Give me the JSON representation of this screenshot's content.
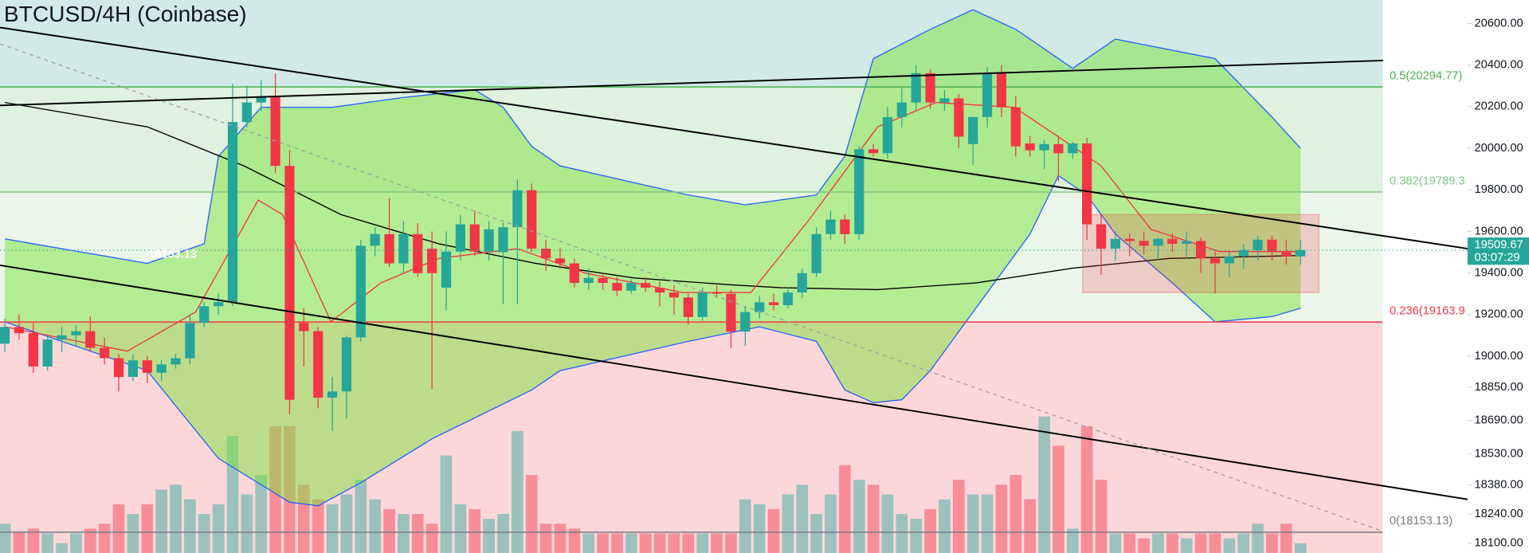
{
  "chart_data": {
    "type": "candlestick",
    "title": "BTCUSD/4H (Coinbase)",
    "xlim": [
      -0.34,
      107.05
    ],
    "ylim": [
      18053,
      20713
    ],
    "yticks": [
      {
        "value": 20600,
        "label": "20600.00"
      },
      {
        "value": 20400,
        "label": "20400.00"
      },
      {
        "value": 20200,
        "label": "20200.00"
      },
      {
        "value": 20000,
        "label": "20000.00"
      },
      {
        "value": 19800,
        "label": "19800.00"
      },
      {
        "value": 19600,
        "label": "19600.00"
      },
      {
        "value": 19400,
        "label": "19400.00"
      },
      {
        "value": 19200,
        "label": "19200.00"
      },
      {
        "value": 19000,
        "label": "19000.00"
      },
      {
        "value": 18850,
        "label": "18850.00"
      },
      {
        "value": 18690,
        "label": "18690.00"
      },
      {
        "value": 18530,
        "label": "18530.00"
      },
      {
        "value": 18380,
        "label": "18380.00"
      },
      {
        "value": 18240,
        "label": "18240.00"
      },
      {
        "value": 18100,
        "label": "18100.00"
      }
    ],
    "up_color": "#26a69a",
    "down_color": "#f23645",
    "candles": [
      [
        19060,
        19180,
        19020,
        19140
      ],
      [
        19140,
        19200,
        19080,
        19110
      ],
      [
        19110,
        19160,
        18920,
        18950
      ],
      [
        18950,
        19100,
        18930,
        19080
      ],
      [
        19080,
        19140,
        19020,
        19100
      ],
      [
        19100,
        19150,
        19050,
        19120
      ],
      [
        19120,
        19190,
        19020,
        19040
      ],
      [
        19040,
        19090,
        18960,
        18990
      ],
      [
        18990,
        19010,
        18830,
        18900
      ],
      [
        18900,
        19010,
        18880,
        18980
      ],
      [
        18980,
        19000,
        18870,
        18920
      ],
      [
        18920,
        18980,
        18880,
        18960
      ],
      [
        18960,
        19010,
        18940,
        18990
      ],
      [
        18990,
        19200,
        18960,
        19160
      ],
      [
        19160,
        19260,
        19140,
        19240
      ],
      [
        19240,
        19300,
        19200,
        19260
      ],
      [
        19260,
        20310,
        19240,
        20126
      ],
      [
        20126,
        20300,
        20100,
        20220
      ],
      [
        20220,
        20330,
        20180,
        20250
      ],
      [
        20250,
        20360,
        19880,
        19915
      ],
      [
        19915,
        19990,
        18720,
        18790
      ],
      [
        19160,
        19230,
        18950,
        19120
      ],
      [
        19120,
        19140,
        18750,
        18800
      ],
      [
        18800,
        18900,
        18640,
        18830
      ],
      [
        18830,
        19100,
        18700,
        19090
      ],
      [
        19090,
        19560,
        19070,
        19531
      ],
      [
        19531,
        19620,
        19480,
        19587
      ],
      [
        19587,
        19760,
        19430,
        19446
      ],
      [
        19446,
        19650,
        19400,
        19587
      ],
      [
        19587,
        19640,
        19380,
        19399
      ],
      [
        19517,
        19600,
        18840,
        19399
      ],
      [
        19329,
        19600,
        19220,
        19503
      ],
      [
        19503,
        19680,
        19460,
        19634
      ],
      [
        19634,
        19700,
        19480,
        19503
      ],
      [
        19503,
        19650,
        19460,
        19610
      ],
      [
        19500,
        19640,
        19250,
        19620
      ],
      [
        19620,
        19850,
        19250,
        19798
      ],
      [
        19798,
        19830,
        19500,
        19517
      ],
      [
        19517,
        19560,
        19410,
        19470
      ],
      [
        19470,
        19520,
        19420,
        19446
      ],
      [
        19446,
        19470,
        19330,
        19352
      ],
      [
        19352,
        19420,
        19320,
        19376
      ],
      [
        19376,
        19400,
        19320,
        19352
      ],
      [
        19352,
        19380,
        19290,
        19315
      ],
      [
        19315,
        19370,
        19300,
        19352
      ],
      [
        19352,
        19380,
        19310,
        19329
      ],
      [
        19329,
        19360,
        19240,
        19306
      ],
      [
        19306,
        19340,
        19200,
        19282
      ],
      [
        19282,
        19300,
        19150,
        19188
      ],
      [
        19188,
        19330,
        19170,
        19306
      ],
      [
        19306,
        19340,
        19280,
        19300
      ],
      [
        19300,
        19320,
        19040,
        19118
      ],
      [
        19118,
        19240,
        19050,
        19212
      ],
      [
        19212,
        19290,
        19180,
        19259
      ],
      [
        19259,
        19300,
        19220,
        19245
      ],
      [
        19245,
        19330,
        19230,
        19306
      ],
      [
        19306,
        19420,
        19280,
        19399
      ],
      [
        19399,
        19620,
        19380,
        19587
      ],
      [
        19587,
        19700,
        19560,
        19657
      ],
      [
        19657,
        19680,
        19540,
        19587
      ],
      [
        19587,
        20010,
        19560,
        19995
      ],
      [
        19995,
        20020,
        19960,
        19976
      ],
      [
        19976,
        20200,
        19950,
        20150
      ],
      [
        20150,
        20290,
        20100,
        20220
      ],
      [
        20220,
        20400,
        20180,
        20361
      ],
      [
        20361,
        20380,
        20190,
        20220
      ],
      [
        20220,
        20280,
        20180,
        20240
      ],
      [
        20240,
        20260,
        20000,
        20056
      ],
      [
        20020,
        20150,
        19920,
        20150
      ],
      [
        20150,
        20390,
        20100,
        20361
      ],
      [
        20361,
        20400,
        20150,
        20197
      ],
      [
        20197,
        20250,
        19960,
        20009
      ],
      [
        20023,
        20060,
        19960,
        19990
      ],
      [
        19990,
        20040,
        19900,
        20020
      ],
      [
        20020,
        20060,
        19840,
        19976
      ],
      [
        19976,
        20030,
        19950,
        20023
      ],
      [
        20023,
        20050,
        19560,
        19634
      ],
      [
        19634,
        19680,
        19390,
        19517
      ],
      [
        19517,
        19600,
        19460,
        19564
      ],
      [
        19564,
        19590,
        19480,
        19554
      ],
      [
        19554,
        19600,
        19490,
        19531
      ],
      [
        19531,
        19570,
        19460,
        19564
      ],
      [
        19564,
        19590,
        19500,
        19540
      ],
      [
        19540,
        19600,
        19470,
        19554
      ],
      [
        19554,
        19570,
        19400,
        19470
      ],
      [
        19470,
        19510,
        19300,
        19446
      ],
      [
        19446,
        19500,
        19380,
        19480
      ],
      [
        19480,
        19540,
        19420,
        19510
      ],
      [
        19510,
        19580,
        19460,
        19560
      ],
      [
        19560,
        19580,
        19460,
        19500
      ],
      [
        19500,
        19560,
        19440,
        19480
      ],
      [
        19480,
        19560,
        19440,
        19509.67
      ]
    ],
    "volume": {
      "up_color": "rgba(38,166,154,0.45)",
      "down_color": "rgba(242,54,69,0.45)",
      "values": [
        30,
        22,
        25,
        20,
        10,
        20,
        25,
        30,
        50,
        40,
        50,
        65,
        70,
        55,
        40,
        50,
        120,
        60,
        80,
        130,
        130,
        70,
        55,
        50,
        60,
        75,
        55,
        45,
        40,
        40,
        30,
        100,
        50,
        45,
        35,
        40,
        125,
        80,
        30,
        30,
        25,
        20,
        20,
        20,
        20,
        20,
        20,
        20,
        20,
        20,
        20,
        20,
        55,
        50,
        45,
        60,
        70,
        40,
        60,
        90,
        75,
        70,
        60,
        40,
        35,
        45,
        55,
        75,
        60,
        60,
        70,
        80,
        55,
        140,
        110,
        25,
        130,
        75,
        20,
        20,
        15,
        20,
        20,
        15,
        20,
        20,
        15,
        20,
        30,
        20,
        30,
        10
      ]
    },
    "band_fill": "rgba(125,225,60,0.5)",
    "lines": [
      {
        "x": [
          0,
          10,
          14,
          15,
          18,
          23,
          28,
          33,
          35,
          37,
          39,
          48,
          52,
          57,
          59,
          61,
          65,
          68,
          71,
          75,
          78,
          85,
          89,
          91
        ],
        "values": [
          19564,
          19446,
          19540,
          19960,
          20197,
          20197,
          20244,
          20281,
          20197,
          20009,
          19915,
          19775,
          19728,
          19775,
          19962,
          20431,
          20572,
          20666,
          20572,
          20384,
          20525,
          20431,
          20150,
          20000
        ],
        "color": "#2962ff"
      },
      {
        "x": [
          0,
          10,
          15,
          20,
          22,
          25,
          30,
          37,
          39,
          48,
          53,
          57,
          59,
          61,
          63,
          65,
          68,
          72,
          74,
          76,
          78,
          82,
          85,
          89,
          91
        ],
        "values": [
          19165,
          18930,
          18508,
          18297,
          18280,
          18391,
          18602,
          18837,
          18930,
          19071,
          19141,
          19071,
          18837,
          18776,
          18790,
          18930,
          19212,
          19587,
          19868,
          19775,
          19587,
          19352,
          19165,
          19190,
          19230
        ],
        "color": "#2962ff"
      },
      {
        "x": [
          0,
          10,
          16.8,
          23.6,
          30.5,
          37.3,
          44.2,
          51,
          54.5,
          61.3,
          68.2,
          75,
          81.8,
          91
        ],
        "values": [
          20220,
          20103,
          19915,
          19681,
          19540,
          19446,
          19376,
          19343,
          19329,
          19320,
          19352,
          19423,
          19470,
          19484
        ],
        "color": "#000000"
      },
      {
        "x": [
          0,
          8.6,
          13.4,
          17.8,
          19.5,
          22.9,
          26.4,
          30.5,
          36,
          40.8,
          47.6,
          52.4,
          56.5,
          61.3,
          65.4,
          70.9,
          75,
          77,
          80.5,
          85.3,
          91
        ],
        "values": [
          19141,
          19024,
          19212,
          19751,
          19681,
          19165,
          19352,
          19470,
          19517,
          19399,
          19306,
          19306,
          19657,
          20103,
          20220,
          20197,
          20009,
          19915,
          19610,
          19503,
          19503
        ],
        "color": "#f23645"
      }
    ],
    "trendlines": [
      {
        "x": [
          -0.34,
          102.74
        ],
        "values": [
          20581,
          19517
        ],
        "color": "#000000",
        "dashed": false
      },
      {
        "x": [
          -0.34,
          96.8
        ],
        "values": [
          20206,
          20422
        ],
        "color": "#000000",
        "dashed": false
      },
      {
        "x": [
          -0.34,
          102.74
        ],
        "values": [
          19437,
          18311
        ],
        "color": "#000000",
        "dashed": false
      },
      {
        "x": [
          -0.34,
          96.8
        ],
        "values": [
          20502,
          18157
        ],
        "color": "#9e9e9e",
        "dashed": true
      }
    ],
    "fib": [
      {
        "value": 20294.77,
        "label": "0.5(20294.77)",
        "color": "#4caf50"
      },
      {
        "value": 19789.3,
        "label": "0.382(19789.3",
        "color": "#81c784"
      },
      {
        "value": 19163.9,
        "label": "0.236(19163.9",
        "color": "#f23645"
      },
      {
        "value": 18153.13,
        "label": "0(18153.13)",
        "color": "#787b86"
      }
    ],
    "zone_colors": [
      "rgba(0,137,123,0.18)",
      "rgba(76,175,80,0.18)",
      "rgba(129,199,132,0.16)",
      "rgba(242,54,69,0.2)",
      "rgba(242,54,69,0.2)"
    ],
    "box": {
      "x": [
        75.7,
        92.3
      ],
      "values": [
        19306,
        19681
      ],
      "color": "rgba(242,54,69,0.22)"
    },
    "fib_price_label": 18153.13,
    "last_price": 19509.67,
    "countdown": "03:07:29"
  }
}
